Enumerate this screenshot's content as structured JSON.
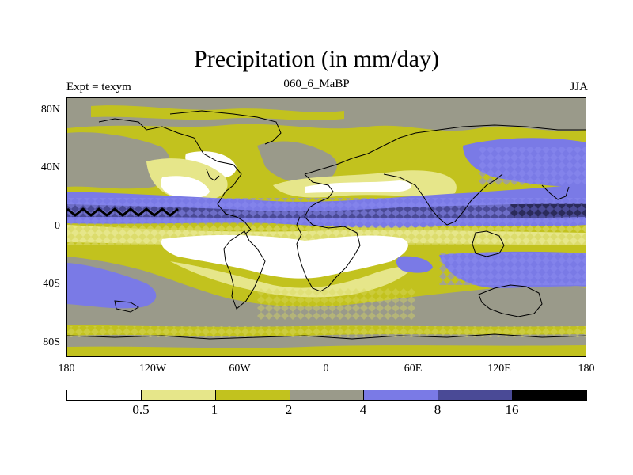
{
  "title": "Precipitation (in mm/day)",
  "experiment": "Expt = texym",
  "run_label": "060_6_MaBP",
  "season": "JJA",
  "y_ticks": [
    "80N",
    "40N",
    "0",
    "40S",
    "80S"
  ],
  "x_ticks": [
    "180",
    "120W",
    "60W",
    "0",
    "60E",
    "120E",
    "180"
  ],
  "colorbar": {
    "colors": [
      "#ffffff",
      "#e6e68a",
      "#c2c21e",
      "#9a9a8a",
      "#7a7ae6",
      "#4a4a96",
      "#000000"
    ],
    "labels": [
      "0.5",
      "1",
      "2",
      "4",
      "8",
      "16"
    ]
  }
}
